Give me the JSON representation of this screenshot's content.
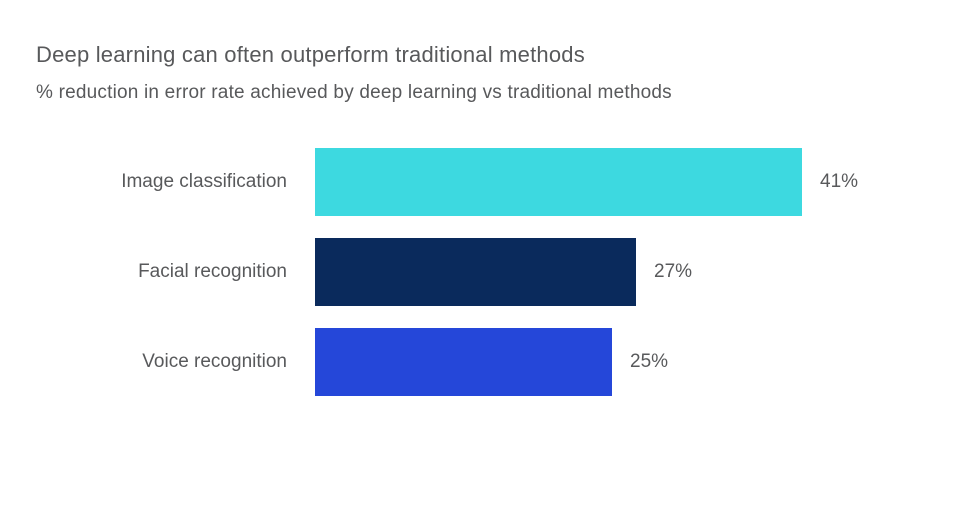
{
  "chart_data": {
    "type": "bar",
    "orientation": "horizontal",
    "title": "Deep learning can often outperform traditional methods",
    "subtitle": "% reduction in error rate achieved by deep learning vs traditional methods",
    "categories": [
      "Image classification",
      "Facial recognition",
      "Voice recognition"
    ],
    "values": [
      41,
      27,
      25
    ],
    "value_labels": [
      "41%",
      "27%",
      "25%"
    ],
    "bar_colors": [
      "#3dd9e0",
      "#0a2a5c",
      "#2547d9"
    ],
    "xlim": [
      0,
      41
    ],
    "grid": false,
    "legend": false,
    "axis_labels_visible": false
  },
  "layout_colors": {
    "background": "#ffffff",
    "text": "#58595b"
  }
}
